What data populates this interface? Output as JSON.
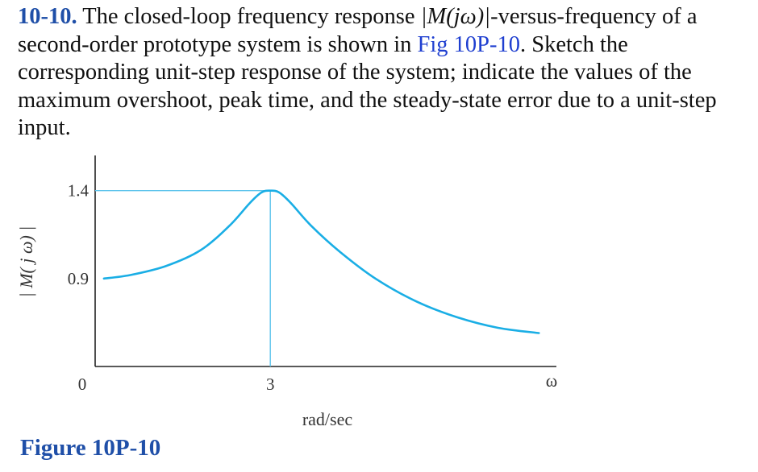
{
  "problem": {
    "number": "10-10.",
    "text_before": " The closed-loop frequency response ",
    "math": "|M(jω)|",
    "text_middle": "-versus-frequency of a second-order prototype system is shown in ",
    "figure_ref": "Fig 10P-10",
    "text_after": ". Sketch the corresponding unit-step response of the system; indicate the values of the maximum overshoot, peak time, and the steady-state error due to a unit-step input."
  },
  "figure": {
    "caption": "Figure 10P-10",
    "colors": {
      "curve": "#1aaee5",
      "guide": "#5ec4ec",
      "axis": "#222222",
      "caption": "#1f4fa8",
      "problem_number": "#1f4fa8",
      "figure_ref": "#1f3fd0"
    }
  },
  "chart_data": {
    "type": "line",
    "title": "",
    "ylabel": "| M( j ω) |",
    "xlabel": "rad/sec",
    "x_axis_symbol": "ω",
    "x_ticks": [
      {
        "value": 0,
        "label": "0"
      },
      {
        "value": 3,
        "label": "3"
      }
    ],
    "y_ticks": [
      {
        "value": 0.9,
        "label": "0.9"
      },
      {
        "value": 1.4,
        "label": "1.4"
      }
    ],
    "xlim": [
      0,
      7.9
    ],
    "ylim": [
      0.4,
      1.6
    ],
    "resonant_peak": {
      "frequency": 3,
      "magnitude": 1.4
    },
    "series": [
      {
        "x": [
          0.15,
          0.6,
          1.2,
          1.8,
          2.3,
          2.65,
          2.85,
          3.0,
          3.15,
          3.35,
          3.7,
          4.2,
          4.8,
          5.5,
          6.2,
          6.9,
          7.6
        ],
        "y": [
          0.9,
          0.92,
          0.97,
          1.06,
          1.2,
          1.33,
          1.39,
          1.4,
          1.39,
          1.33,
          1.2,
          1.05,
          0.9,
          0.77,
          0.68,
          0.62,
          0.59
        ]
      }
    ]
  }
}
